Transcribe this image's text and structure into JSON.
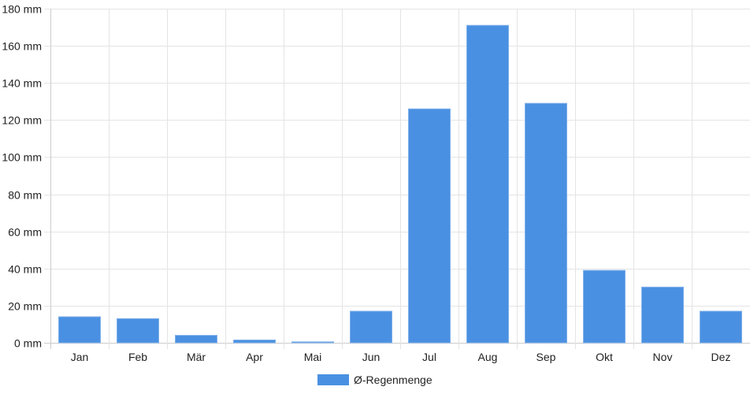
{
  "chart_data": {
    "type": "bar",
    "categories": [
      "Jan",
      "Feb",
      "Mär",
      "Apr",
      "Mai",
      "Jun",
      "Jul",
      "Aug",
      "Sep",
      "Okt",
      "Nov",
      "Dez"
    ],
    "series": [
      {
        "name": "Ø-Regenmenge",
        "values": [
          14,
          13,
          4,
          1.5,
          0.5,
          17,
          126,
          171,
          129,
          39,
          30,
          17
        ],
        "color": "#4a90e2"
      }
    ],
    "y_unit": "mm",
    "ylim": [
      0,
      180
    ],
    "y_ticks": [
      0,
      20,
      40,
      60,
      80,
      100,
      120,
      140,
      160,
      180
    ],
    "y_tick_labels": [
      "0 mm",
      "20 mm",
      "40 mm",
      "60 mm",
      "80 mm",
      "100 mm",
      "120 mm",
      "140 mm",
      "160 mm",
      "180 mm"
    ],
    "grid": true,
    "legend_position": "bottom-center"
  }
}
